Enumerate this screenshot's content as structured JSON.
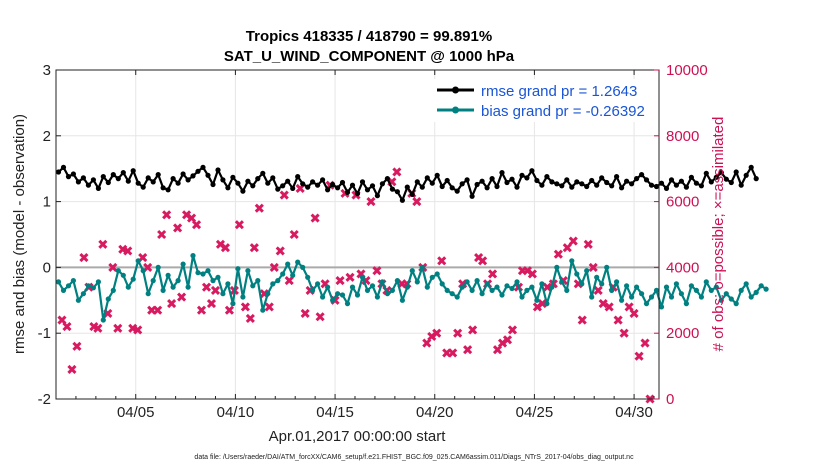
{
  "chart_data": {
    "type": "line",
    "title": "Tropics 418335 / 418790 = 99.891%",
    "subtitle": "SAT_U_WIND_COMPONENT @ 1000 hPa",
    "xlabel": "Apr.01,2017 00:00:00 start",
    "ylabel": "rmse and bias (model - observation)",
    "ylabel_right": "# of obs: o=possible; ×=assimilated",
    "xlim": [
      1.0,
      31.25
    ],
    "ylim": [
      -2,
      3
    ],
    "ylim_right": [
      0,
      10000
    ],
    "x_ticks": [
      5,
      10,
      15,
      20,
      25,
      30
    ],
    "x_tick_labels": [
      "04/05",
      "04/10",
      "04/15",
      "04/20",
      "04/25",
      "04/30"
    ],
    "y_ticks": [
      -2,
      -1,
      0,
      1,
      2,
      3
    ],
    "y_tick_labels": [
      "-2",
      "-1",
      "0",
      "1",
      "2",
      "3"
    ],
    "y_ticks_right": [
      0,
      2000,
      4000,
      6000,
      8000,
      10000
    ],
    "y_tick_labels_right": [
      "0",
      "2000",
      "4000",
      "6000",
      "8000",
      "10000"
    ],
    "footnote": "data file: /Users/raeder/DAI/ATM_forcXX/CAM6_setup/f.e21.FHIST_BGC.f09_025.CAM6assim.011/Diags_NTrS_2017-04/obs_diag_output.nc",
    "colors": {
      "rmse": "#000000",
      "bias": "#008080",
      "obs": "#d81b60",
      "legend_text": "#1a55d6",
      "zero_line": "#aaaaaa"
    },
    "series": [
      {
        "name": "rmse grand pr = 1.2643",
        "x_start": 1.125,
        "x_step": 0.25,
        "values": [
          1.45,
          1.52,
          1.38,
          1.42,
          1.3,
          1.36,
          1.25,
          1.33,
          1.2,
          1.38,
          1.29,
          1.41,
          1.35,
          1.44,
          1.31,
          1.47,
          1.28,
          1.22,
          1.36,
          1.3,
          1.41,
          1.21,
          1.18,
          1.35,
          1.28,
          1.42,
          1.33,
          1.39,
          1.46,
          1.52,
          1.4,
          1.26,
          1.48,
          1.33,
          1.21,
          1.37,
          1.28,
          1.16,
          1.31,
          1.24,
          1.35,
          1.43,
          1.28,
          1.36,
          1.19,
          1.24,
          1.31,
          1.2,
          1.38,
          1.27,
          1.22,
          1.3,
          1.25,
          1.33,
          1.18,
          1.26,
          1.21,
          1.29,
          1.14,
          1.25,
          1.12,
          1.3,
          1.18,
          1.24,
          1.09,
          1.27,
          1.35,
          1.19,
          1.15,
          1.02,
          1.22,
          1.11,
          1.3,
          1.22,
          1.36,
          1.28,
          1.4,
          1.23,
          1.32,
          1.21,
          1.16,
          1.27,
          1.33,
          1.08,
          1.26,
          1.31,
          1.21,
          1.35,
          1.23,
          1.44,
          1.29,
          1.34,
          1.22,
          1.4,
          1.36,
          1.47,
          1.32,
          1.25,
          1.38,
          1.3,
          1.27,
          1.24,
          1.33,
          1.22,
          1.3,
          1.27,
          1.23,
          1.32,
          1.25,
          1.36,
          1.29,
          1.24,
          1.38,
          1.21,
          1.31,
          1.27,
          1.35,
          1.41,
          1.33,
          1.25,
          1.23,
          1.28,
          1.2,
          1.33,
          1.25,
          1.31,
          1.22,
          1.37,
          1.28,
          1.24,
          1.43,
          1.3,
          1.37,
          1.44,
          1.34,
          1.29,
          1.45,
          1.25,
          1.4,
          1.52,
          1.35
        ]
      },
      {
        "name": "bias grand pr = -0.26392",
        "x_start": 1.125,
        "x_step": 0.25,
        "values": [
          -0.22,
          -0.35,
          -0.28,
          -0.2,
          -0.5,
          -0.4,
          -0.28,
          -0.31,
          -0.22,
          -0.8,
          -0.48,
          -0.35,
          -0.05,
          -0.12,
          -0.3,
          -0.18,
          0.1,
          -0.05,
          -0.4,
          -0.2,
          0.0,
          -0.35,
          -0.12,
          -0.3,
          -0.2,
          0.05,
          -0.3,
          0.18,
          -0.08,
          -0.1,
          -0.05,
          -0.2,
          -0.15,
          -0.4,
          -0.25,
          -0.55,
          -0.02,
          -0.45,
          -0.05,
          -0.28,
          -0.2,
          -0.65,
          -0.4,
          -0.25,
          -0.2,
          -0.1,
          0.05,
          -0.12,
          0.08,
          0.0,
          -0.15,
          -0.35,
          -0.25,
          -0.45,
          -0.3,
          -0.5,
          -0.4,
          -0.42,
          -0.55,
          -0.3,
          -0.42,
          -0.15,
          -0.35,
          -0.28,
          -0.45,
          -0.22,
          -0.4,
          -0.35,
          -0.2,
          -0.5,
          -0.3,
          -0.05,
          -0.22,
          0.0,
          -0.3,
          -0.15,
          -0.1,
          -0.25,
          -0.35,
          -0.4,
          -0.45,
          -0.3,
          -0.22,
          -0.35,
          -0.2,
          -0.4,
          -0.25,
          -0.35,
          -0.3,
          -0.42,
          -0.28,
          -0.32,
          -0.22,
          -0.45,
          -0.35,
          -0.3,
          -0.5,
          -0.25,
          -0.55,
          -0.3,
          0.0,
          -0.22,
          -0.35,
          0.1,
          -0.1,
          -0.25,
          -0.05,
          -0.45,
          -0.15,
          -0.25,
          0.0,
          -0.35,
          -0.22,
          -0.5,
          -0.28,
          -0.45,
          -0.3,
          -0.4,
          -0.55,
          -0.45,
          -0.35,
          -0.6,
          -0.3,
          -0.45,
          -0.25,
          -0.4,
          -0.55,
          -0.28,
          -0.35,
          -0.45,
          -0.22,
          -0.35,
          -0.3,
          -0.5,
          -0.4,
          -0.48,
          -0.55,
          -0.35,
          -0.25,
          -0.45,
          -0.38,
          -0.28,
          -0.33
        ]
      }
    ],
    "obs_counts": {
      "name": "# of obs",
      "points": [
        [
          1.3,
          2400
        ],
        [
          1.55,
          2200
        ],
        [
          1.8,
          900
        ],
        [
          2.05,
          1600
        ],
        [
          2.4,
          4300
        ],
        [
          2.65,
          3400
        ],
        [
          2.9,
          2200
        ],
        [
          3.1,
          2150
        ],
        [
          3.35,
          4700
        ],
        [
          3.6,
          2600
        ],
        [
          3.85,
          4000
        ],
        [
          4.1,
          2150
        ],
        [
          4.35,
          4550
        ],
        [
          4.6,
          4500
        ],
        [
          4.85,
          2150
        ],
        [
          5.1,
          2100
        ],
        [
          5.35,
          4300
        ],
        [
          5.6,
          4000
        ],
        [
          5.8,
          2700
        ],
        [
          6.1,
          2700
        ],
        [
          6.3,
          5000
        ],
        [
          6.55,
          5600
        ],
        [
          6.8,
          2900
        ],
        [
          7.1,
          5200
        ],
        [
          7.3,
          3100
        ],
        [
          7.55,
          5600
        ],
        [
          7.8,
          5500
        ],
        [
          8.05,
          5300
        ],
        [
          8.3,
          2700
        ],
        [
          8.55,
          3400
        ],
        [
          8.8,
          2900
        ],
        [
          9.0,
          3300
        ],
        [
          9.25,
          4700
        ],
        [
          9.5,
          4600
        ],
        [
          9.7,
          2700
        ],
        [
          9.95,
          3300
        ],
        [
          10.2,
          5300
        ],
        [
          10.5,
          2800
        ],
        [
          10.75,
          2450
        ],
        [
          10.95,
          4600
        ],
        [
          11.2,
          5800
        ],
        [
          11.45,
          3200
        ],
        [
          11.7,
          2800
        ],
        [
          11.95,
          4000
        ],
        [
          12.25,
          4500
        ],
        [
          12.45,
          6200
        ],
        [
          12.7,
          3600
        ],
        [
          12.95,
          5000
        ],
        [
          13.25,
          6400
        ],
        [
          13.5,
          2600
        ],
        [
          13.75,
          3300
        ],
        [
          14.0,
          5500
        ],
        [
          14.25,
          2500
        ],
        [
          14.5,
          3500
        ],
        [
          14.75,
          6500
        ],
        [
          15.0,
          3000
        ],
        [
          15.25,
          3600
        ],
        [
          15.5,
          6250
        ],
        [
          15.75,
          3700
        ],
        [
          16.05,
          6200
        ],
        [
          16.3,
          3800
        ],
        [
          16.55,
          3600
        ],
        [
          16.8,
          6000
        ],
        [
          17.1,
          3900
        ],
        [
          17.35,
          3500
        ],
        [
          17.6,
          3300
        ],
        [
          17.85,
          6600
        ],
        [
          18.1,
          6900
        ],
        [
          18.35,
          3500
        ],
        [
          18.6,
          3500
        ],
        [
          18.85,
          6250
        ],
        [
          19.1,
          6000
        ],
        [
          19.4,
          4000
        ],
        [
          19.6,
          1700
        ],
        [
          19.85,
          1900
        ],
        [
          20.1,
          2000
        ],
        [
          20.35,
          4200
        ],
        [
          20.6,
          1400
        ],
        [
          20.9,
          1400
        ],
        [
          21.15,
          2000
        ],
        [
          21.4,
          3500
        ],
        [
          21.65,
          1500
        ],
        [
          21.9,
          2100
        ],
        [
          22.2,
          4300
        ],
        [
          22.4,
          4200
        ],
        [
          22.65,
          3500
        ],
        [
          22.9,
          3800
        ],
        [
          23.15,
          1500
        ],
        [
          23.4,
          1700
        ],
        [
          23.65,
          1800
        ],
        [
          23.9,
          2100
        ],
        [
          24.2,
          3400
        ],
        [
          24.4,
          3900
        ],
        [
          24.65,
          3900
        ],
        [
          24.9,
          3800
        ],
        [
          25.15,
          2800
        ],
        [
          25.4,
          2900
        ],
        [
          25.65,
          3400
        ],
        [
          25.95,
          3500
        ],
        [
          26.2,
          4400
        ],
        [
          26.45,
          3600
        ],
        [
          26.65,
          4600
        ],
        [
          26.95,
          4800
        ],
        [
          27.2,
          3500
        ],
        [
          27.4,
          2400
        ],
        [
          27.7,
          4700
        ],
        [
          27.95,
          4000
        ],
        [
          28.2,
          3300
        ],
        [
          28.45,
          2900
        ],
        [
          28.75,
          2800
        ],
        [
          28.95,
          3400
        ],
        [
          29.2,
          2400
        ],
        [
          29.5,
          2000
        ],
        [
          29.75,
          2800
        ],
        [
          30.0,
          2600
        ],
        [
          30.25,
          1300
        ],
        [
          30.55,
          1700
        ],
        [
          30.8,
          0
        ]
      ]
    },
    "legend": {
      "position": "top-right",
      "entries": [
        "rmse grand pr = 1.2643",
        "bias grand pr = -0.26392"
      ]
    }
  }
}
